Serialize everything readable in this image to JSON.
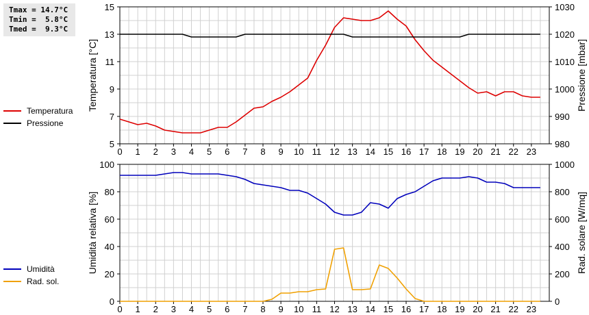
{
  "stats": {
    "tmax": "Tmax = 14.7°C",
    "tmin": "Tmin =  5.8°C",
    "tmed": "Tmed =  9.3°C"
  },
  "legend_top": [
    {
      "label": "Temperatura",
      "color": "#dd0000"
    },
    {
      "label": "Pressione",
      "color": "#000000"
    }
  ],
  "legend_bottom": [
    {
      "label": "Umidità",
      "color": "#0000bb"
    },
    {
      "label": "Rad. sol.",
      "color": "#f0a000"
    }
  ],
  "chart_data": [
    {
      "type": "line",
      "x_ticks": [
        0,
        1,
        2,
        3,
        4,
        5,
        6,
        7,
        8,
        9,
        10,
        11,
        12,
        13,
        14,
        15,
        16,
        17,
        18,
        19,
        20,
        21,
        22,
        23
      ],
      "xlim": [
        0,
        24
      ],
      "ylabel": "Temperatura [°C]",
      "y2label": "Pressione [mbar]",
      "ylim": [
        5,
        15
      ],
      "y_ticks": [
        5,
        7,
        9,
        11,
        13,
        15
      ],
      "y2lim": [
        980,
        1030
      ],
      "y2_ticks": [
        980,
        990,
        1000,
        1010,
        1020,
        1030
      ],
      "grid": true,
      "series": [
        {
          "name": "Temperatura",
          "axis": "left",
          "color": "#dd0000",
          "x": [
            0,
            0.5,
            1,
            1.5,
            2,
            2.5,
            3,
            3.5,
            4,
            4.5,
            5,
            5.5,
            6,
            6.5,
            7,
            7.5,
            8,
            8.5,
            9,
            9.5,
            10,
            10.5,
            11,
            11.5,
            12,
            12.5,
            13,
            13.5,
            14,
            14.5,
            15,
            15.5,
            16,
            16.5,
            17,
            17.5,
            18,
            18.5,
            19,
            19.5,
            20,
            20.5,
            21,
            21.5,
            22,
            22.5,
            23,
            23.5
          ],
          "values": [
            6.8,
            6.6,
            6.4,
            6.5,
            6.3,
            6.0,
            5.9,
            5.8,
            5.8,
            5.8,
            6.0,
            6.2,
            6.2,
            6.6,
            7.1,
            7.6,
            7.7,
            8.1,
            8.4,
            8.8,
            9.3,
            9.8,
            11.1,
            12.2,
            13.5,
            14.2,
            14.1,
            14.0,
            14.0,
            14.2,
            14.7,
            14.1,
            13.6,
            12.6,
            11.8,
            11.1,
            10.6,
            10.1,
            9.6,
            9.1,
            8.7,
            8.8,
            8.5,
            8.8,
            8.8,
            8.5,
            8.4,
            8.4
          ]
        },
        {
          "name": "Pressione",
          "axis": "right",
          "color": "#000000",
          "x": [
            0,
            3.5,
            4,
            6.5,
            7,
            12.5,
            13,
            19,
            19.5,
            23.5
          ],
          "values": [
            1020,
            1020,
            1019,
            1019,
            1020,
            1020,
            1019,
            1019,
            1020,
            1020
          ]
        }
      ]
    },
    {
      "type": "line",
      "x_ticks": [
        0,
        1,
        2,
        3,
        4,
        5,
        6,
        7,
        8,
        9,
        10,
        11,
        12,
        13,
        14,
        15,
        16,
        17,
        18,
        19,
        20,
        21,
        22,
        23
      ],
      "xlim": [
        0,
        24
      ],
      "ylabel": "Umidità relativa [%]",
      "y2label": "Rad. solare [W/mq]",
      "ylim": [
        0,
        100
      ],
      "y_ticks": [
        0,
        20,
        40,
        60,
        80,
        100
      ],
      "y2lim": [
        0,
        1000
      ],
      "y2_ticks": [
        0,
        200,
        400,
        600,
        800,
        1000
      ],
      "grid": true,
      "series": [
        {
          "name": "Umidità",
          "axis": "left",
          "color": "#0000bb",
          "x": [
            0,
            0.5,
            1,
            1.5,
            2,
            2.5,
            3,
            3.5,
            4,
            4.5,
            5,
            5.5,
            6,
            6.5,
            7,
            7.5,
            8,
            8.5,
            9,
            9.5,
            10,
            10.5,
            11,
            11.5,
            12,
            12.5,
            13,
            13.5,
            14,
            14.5,
            15,
            15.5,
            16,
            16.5,
            17,
            17.5,
            18,
            18.5,
            19,
            19.5,
            20,
            20.5,
            21,
            21.5,
            22,
            22.5,
            23,
            23.5
          ],
          "values": [
            92,
            92,
            92,
            92,
            92,
            93,
            94,
            94,
            93,
            93,
            93,
            93,
            92,
            91,
            89,
            86,
            85,
            84,
            83,
            81,
            81,
            79,
            75,
            71,
            65,
            63,
            63,
            65,
            72,
            71,
            68,
            75,
            78,
            80,
            84,
            88,
            90,
            90,
            90,
            91,
            90,
            87,
            87,
            86,
            83,
            83,
            83,
            83
          ]
        },
        {
          "name": "Rad. sol.",
          "axis": "right",
          "color": "#f0a000",
          "x": [
            0,
            8,
            8.5,
            9,
            9.5,
            10,
            10.5,
            11,
            11.5,
            12,
            12.5,
            13,
            13.5,
            14,
            14.5,
            15,
            15.5,
            16,
            16.5,
            17,
            23.5
          ],
          "values": [
            0,
            0,
            15,
            60,
            60,
            70,
            70,
            85,
            90,
            380,
            390,
            85,
            85,
            90,
            265,
            240,
            170,
            90,
            20,
            0,
            0
          ]
        }
      ]
    }
  ]
}
